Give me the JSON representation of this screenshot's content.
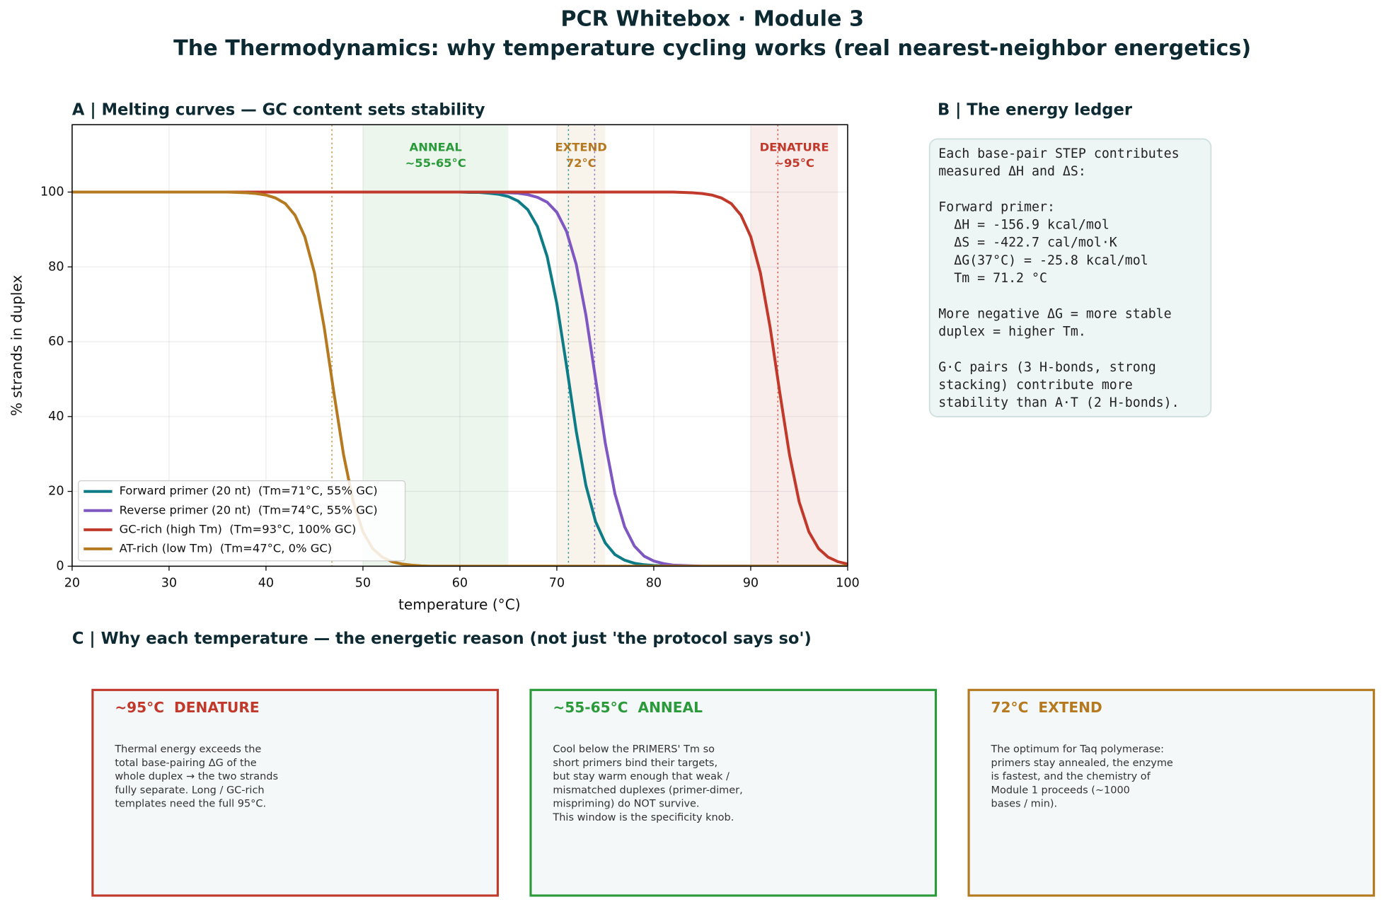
{
  "title": "PCR Whitebox · Module 3",
  "subtitle": "The Thermodynamics: why temperature cycling works (real nearest-neighbor energetics)",
  "chart_data": {
    "type": "line",
    "title": "A | Melting curves — GC content sets stability",
    "xlabel": "temperature (°C)",
    "ylabel": "% strands in duplex",
    "xlim": [
      20,
      100
    ],
    "ylim": [
      0,
      118
    ],
    "xticks": [
      20,
      30,
      40,
      50,
      60,
      70,
      80,
      90,
      100
    ],
    "yticks": [
      0,
      20,
      40,
      60,
      80,
      100
    ],
    "grid": true,
    "legend": "lower left",
    "x": [
      20,
      21,
      22,
      23,
      24,
      25,
      26,
      27,
      28,
      29,
      30,
      31,
      32,
      33,
      34,
      35,
      36,
      37,
      38,
      39,
      40,
      41,
      42,
      43,
      44,
      45,
      46,
      47,
      48,
      49,
      50,
      51,
      52,
      53,
      54,
      55,
      56,
      57,
      58,
      59,
      60,
      61,
      62,
      63,
      64,
      65,
      66,
      67,
      68,
      69,
      70,
      71,
      72,
      73,
      74,
      75,
      76,
      77,
      78,
      79,
      80,
      81,
      82,
      83,
      84,
      85,
      86,
      87,
      88,
      89,
      90,
      91,
      92,
      93,
      94,
      95,
      96,
      97,
      98,
      99,
      100
    ],
    "series": [
      {
        "name": "Forward primer (20 nt)  (Tm=71°C, 55% GC)",
        "color": "#0e7c86",
        "values": [
          100,
          100,
          100,
          100,
          100,
          100,
          100,
          100,
          100,
          100,
          100,
          100,
          100,
          100,
          100,
          100,
          100,
          100,
          100,
          100,
          100,
          100,
          100,
          100,
          100,
          100,
          100,
          100,
          100,
          100,
          100,
          100,
          100,
          100,
          100,
          100,
          100,
          100,
          100,
          100,
          100,
          99.9,
          99.9,
          99.7,
          99.4,
          98.8,
          97.6,
          95.3,
          90.8,
          82.8,
          70.2,
          53.6,
          36.1,
          21.6,
          11.9,
          6.2,
          3.1,
          1.6,
          0.8,
          0.4,
          0.2,
          0.1,
          0,
          0,
          0,
          0,
          0,
          0,
          0,
          0,
          0,
          0,
          0,
          0,
          0,
          0,
          0,
          0,
          0,
          0,
          0
        ]
      },
      {
        "name": "Reverse primer (20 nt)  (Tm=74°C, 55% GC)",
        "color": "#7e57c2",
        "values": [
          100,
          100,
          100,
          100,
          100,
          100,
          100,
          100,
          100,
          100,
          100,
          100,
          100,
          100,
          100,
          100,
          100,
          100,
          100,
          100,
          100,
          100,
          100,
          100,
          100,
          100,
          100,
          100,
          100,
          100,
          100,
          100,
          100,
          100,
          100,
          100,
          100,
          100,
          100,
          100,
          100,
          100,
          100,
          100,
          99.9,
          99.8,
          99.7,
          99.3,
          98.6,
          97.3,
          94.6,
          89.5,
          80.7,
          67.1,
          50,
          32.9,
          19.3,
          10.5,
          5.4,
          2.7,
          1.4,
          0.7,
          0.3,
          0.2,
          0.1,
          0,
          0,
          0,
          0,
          0,
          0,
          0,
          0,
          0,
          0,
          0,
          0,
          0,
          0,
          0,
          0
        ]
      },
      {
        "name": "GC-rich (high Tm)  (Tm=93°C, 100% GC)",
        "color": "#c0392b",
        "values": [
          100,
          100,
          100,
          100,
          100,
          100,
          100,
          100,
          100,
          100,
          100,
          100,
          100,
          100,
          100,
          100,
          100,
          100,
          100,
          100,
          100,
          100,
          100,
          100,
          100,
          100,
          100,
          100,
          100,
          100,
          100,
          100,
          100,
          100,
          100,
          100,
          100,
          100,
          100,
          100,
          100,
          100,
          100,
          100,
          100,
          100,
          100,
          100,
          100,
          100,
          100,
          100,
          100,
          100,
          100,
          100,
          100,
          100,
          100,
          100,
          100,
          100,
          100,
          99.9,
          99.8,
          99.6,
          99.2,
          98.4,
          96.9,
          93.8,
          88.1,
          78.4,
          63.9,
          46.4,
          29.8,
          17.2,
          9.2,
          4.7,
          2.4,
          1.2,
          0.6
        ]
      },
      {
        "name": "AT-rich (low Tm)  (Tm=47°C, 0% GC)",
        "color": "#b5791f",
        "values": [
          100,
          100,
          100,
          100,
          100,
          100,
          100,
          100,
          100,
          100,
          100,
          100,
          100,
          100,
          100,
          100,
          100,
          99.9,
          99.8,
          99.6,
          99.2,
          98.4,
          96.9,
          93.8,
          88.1,
          78.4,
          63.9,
          46.4,
          29.8,
          17.2,
          9.2,
          4.7,
          2.4,
          1.2,
          0.6,
          0.3,
          0.1,
          0,
          0,
          0,
          0,
          0,
          0,
          0,
          0,
          0,
          0,
          0,
          0,
          0,
          0,
          0,
          0,
          0,
          0,
          0,
          0,
          0,
          0,
          0,
          0,
          0,
          0,
          0,
          0,
          0,
          0,
          0,
          0,
          0,
          0,
          0,
          0,
          0,
          0,
          0,
          0,
          0,
          0,
          0,
          0
        ]
      }
    ],
    "regions": [
      {
        "label": "ANNEAL",
        "range_label": "~55-65°C",
        "from": 50,
        "to": 65,
        "color": "#2a9a3a"
      },
      {
        "label": "EXTEND",
        "range_label": "72°C",
        "from": 70,
        "to": 75,
        "color": "#b5791f"
      },
      {
        "label": "DENATURE",
        "range_label": "~95°C",
        "from": 90,
        "to": 99,
        "color": "#c0392b"
      }
    ],
    "tm_lines": [
      {
        "x": 46.8,
        "color": "#b5791f"
      },
      {
        "x": 71.2,
        "color": "#0e7c86"
      },
      {
        "x": 73.9,
        "color": "#7e57c2"
      },
      {
        "x": 92.8,
        "color": "#c0392b"
      }
    ]
  },
  "ledger": {
    "title": "B | The energy ledger",
    "blocks": [
      [
        "Each base-pair STEP contributes",
        "measured ΔH and ΔS:"
      ],
      [
        "Forward primer:",
        "  ΔH = -156.9 kcal/mol",
        "  ΔS = -422.7 cal/mol·K",
        "  ΔG(37°C) = -25.8 kcal/mol",
        "  Tm = 71.2 °C"
      ],
      [
        "More negative ΔG = more stable",
        "duplex = higher Tm."
      ],
      [
        "G·C pairs (3 H-bonds, strong",
        "stacking) contribute more",
        "stability than A·T (2 H-bonds)."
      ]
    ]
  },
  "reasons": {
    "title": "C | Why each temperature — the energetic reason (not just 'the protocol says so')",
    "cards": [
      {
        "heading": "~95°C  DENATURE",
        "color": "#c0392b",
        "body": [
          "Thermal energy exceeds the",
          "total base-pairing ΔG of the",
          "whole duplex → the two strands",
          "fully separate. Long / GC-rich",
          "templates need the full 95°C."
        ]
      },
      {
        "heading": "~55-65°C  ANNEAL",
        "color": "#2a9a3a",
        "body": [
          "Cool below the PRIMERS' Tm so",
          "short primers bind their targets,",
          "but stay warm enough that weak /",
          "mismatched duplexes (primer-dimer,",
          "mispriming) do NOT survive.",
          "This window is the specificity knob."
        ]
      },
      {
        "heading": "72°C  EXTEND",
        "color": "#b5791f",
        "body": [
          "The optimum for Taq polymerase:",
          "primers stay annealed, the enzyme",
          "is fastest, and the chemistry of",
          "Module 1 proceeds (~1000",
          "bases / min)."
        ]
      }
    ]
  }
}
